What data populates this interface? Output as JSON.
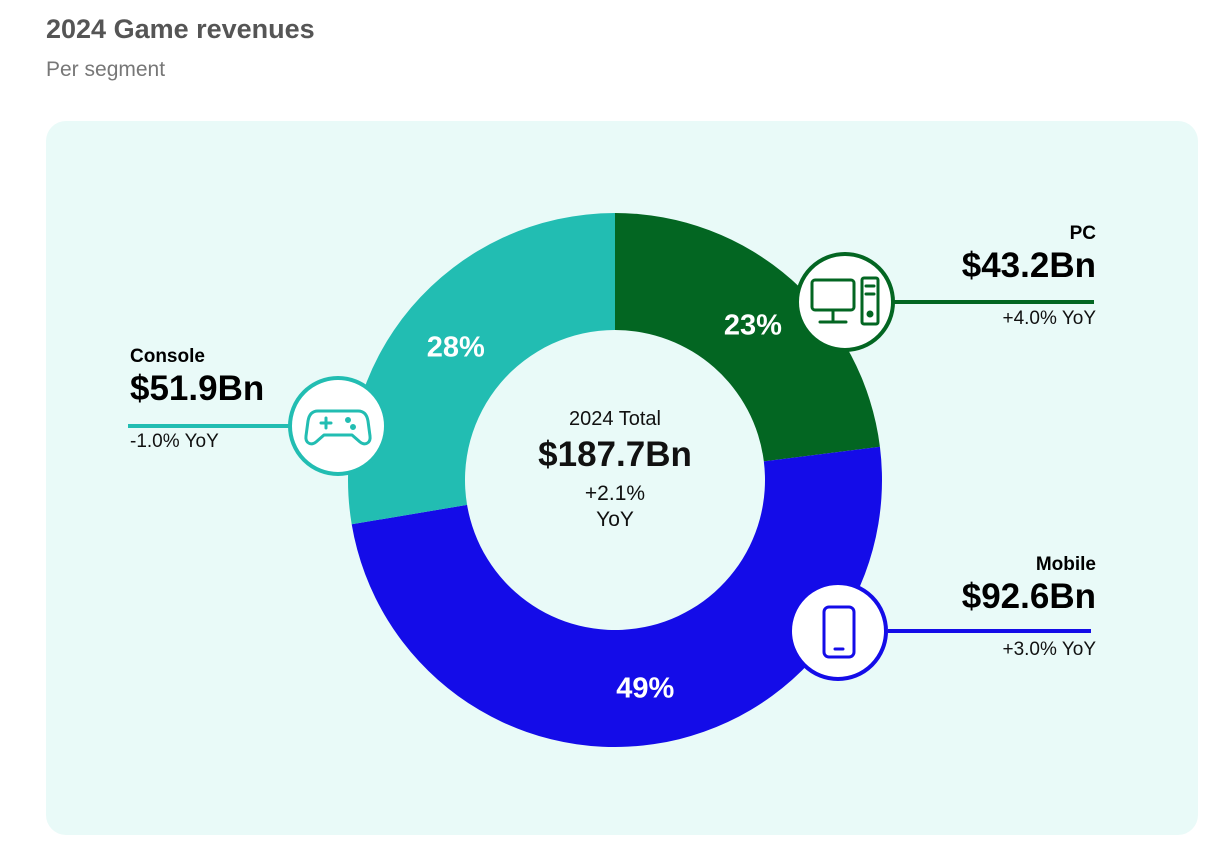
{
  "title": "2024 Game revenues",
  "subtitle": "Per segment",
  "center": {
    "label": "2024 Total",
    "value": "$187.7Bn",
    "yoy": "+2.1% YoY"
  },
  "chart_data": {
    "type": "pie",
    "variant": "donut",
    "title": "2024 Game revenues",
    "subtitle": "Per segment",
    "unit": "$Bn",
    "slices": [
      {
        "key": "pc",
        "name": "PC",
        "value": 43.2,
        "value_label": "$43.2Bn",
        "percent": 23,
        "percent_label": "23%",
        "yoy": "+4.0% YoY",
        "color": "#036622",
        "icon": "desktop-computer-icon"
      },
      {
        "key": "mobile",
        "name": "Mobile",
        "value": 92.6,
        "value_label": "$92.6Bn",
        "percent": 49,
        "percent_label": "49%",
        "yoy": "+3.0% YoY",
        "color": "#140ce8",
        "icon": "smartphone-icon"
      },
      {
        "key": "console",
        "name": "Console",
        "value": 51.9,
        "value_label": "$51.9Bn",
        "percent": 28,
        "percent_label": "28%",
        "yoy": "-1.0% YoY",
        "color": "#22bdb2",
        "icon": "gamepad-icon"
      }
    ],
    "total_label": "$187.7Bn"
  },
  "colors": {
    "panel_bg": "#e9faf8",
    "title": "#555555",
    "subtitle": "#777777"
  }
}
